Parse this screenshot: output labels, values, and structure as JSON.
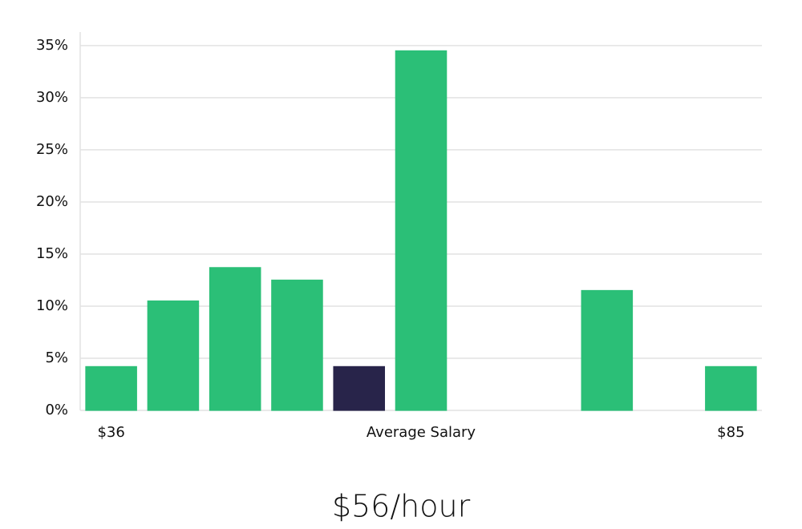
{
  "chart_data": {
    "type": "bar",
    "categories": [
      "$36",
      null,
      null,
      null,
      null,
      null,
      null,
      null,
      null,
      null,
      "$85"
    ],
    "values": [
      4.2,
      10.5,
      13.7,
      12.5,
      4.2,
      34.5,
      0,
      0,
      11.5,
      0,
      4.2
    ],
    "colors": [
      "#2bbf77",
      "#2bbf77",
      "#2bbf77",
      "#2bbf77",
      "#28244a",
      "#2bbf77",
      "#2bbf77",
      "#2bbf77",
      "#2bbf77",
      "#2bbf77",
      "#2bbf77"
    ],
    "x_label": "Average Salary",
    "annotation": "$56/hour",
    "ylim": [
      0,
      36.3
    ],
    "yticks": [
      {
        "value": 0,
        "label": "0%"
      },
      {
        "value": 5,
        "label": "5%"
      },
      {
        "value": 10,
        "label": "10%"
      },
      {
        "value": 15,
        "label": "15%"
      },
      {
        "value": 20,
        "label": "20%"
      },
      {
        "value": 25,
        "label": "25%"
      },
      {
        "value": 30,
        "label": "30%"
      },
      {
        "value": 35,
        "label": "35%"
      }
    ],
    "grid": true
  }
}
